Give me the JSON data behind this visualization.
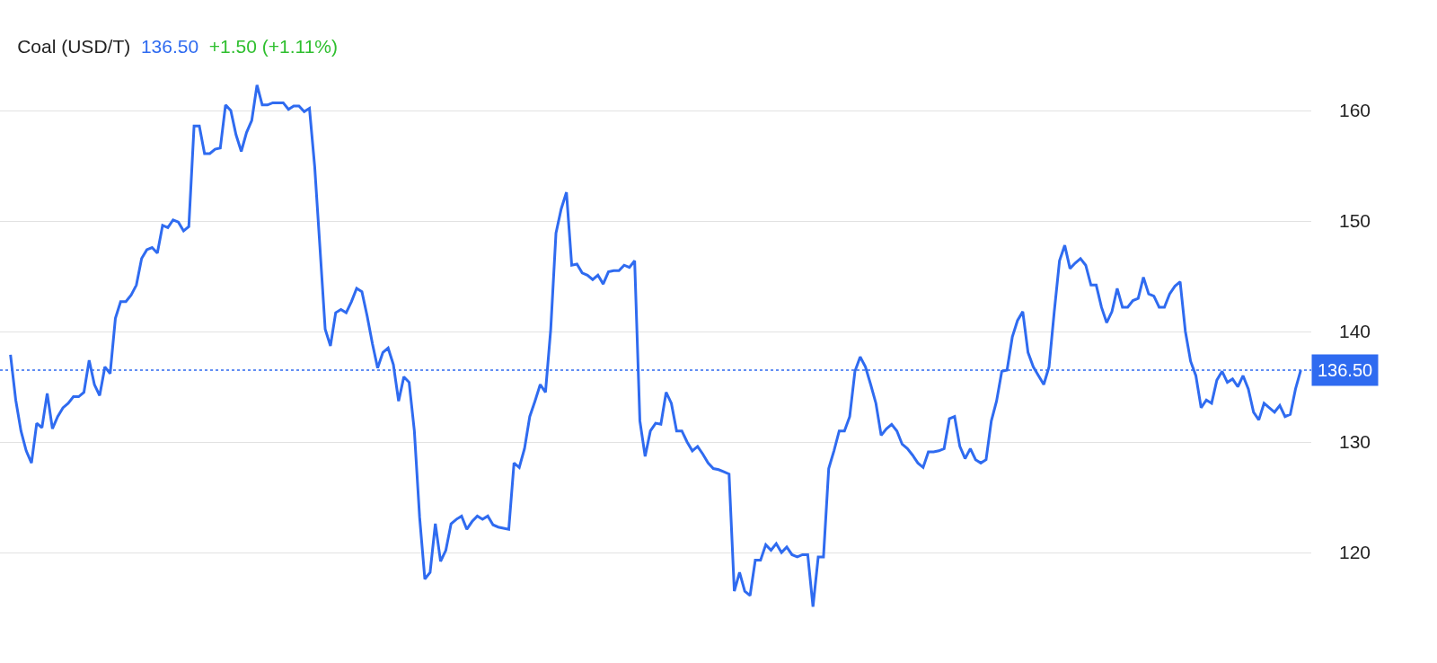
{
  "chart_data": {
    "type": "line",
    "title": "Coal (USD/T)",
    "annotations": [
      "136.50",
      "+1.50 (+1.11%)"
    ],
    "categories": [
      null,
      null,
      null,
      null,
      null,
      null,
      null,
      null,
      null,
      null,
      null,
      null,
      null,
      null,
      null,
      null,
      null,
      null,
      null,
      null,
      null,
      null,
      null,
      null,
      null,
      null,
      null,
      null,
      null,
      null,
      null,
      null,
      null,
      null,
      null,
      null,
      null,
      null,
      null,
      null,
      null,
      null,
      null,
      null,
      null,
      null,
      null,
      null,
      null,
      null,
      null,
      null,
      null,
      null,
      null,
      null,
      null,
      null,
      null,
      null,
      null,
      null,
      null,
      null,
      null,
      null,
      null,
      null,
      null,
      null,
      null,
      null,
      null,
      null,
      null,
      null,
      null,
      null,
      null,
      null,
      null,
      null,
      null,
      null,
      null,
      null,
      null,
      null,
      null,
      null,
      null,
      null,
      null,
      null,
      null,
      null,
      null,
      null,
      null,
      null,
      null,
      null,
      null,
      null,
      null,
      null,
      null,
      null,
      null,
      null,
      null,
      null,
      null,
      null,
      null,
      null,
      null,
      null,
      null,
      null,
      null,
      null,
      null,
      null,
      null,
      null,
      null,
      null,
      null,
      null,
      null,
      null,
      null,
      null,
      null,
      null,
      null,
      null,
      null,
      null,
      null,
      null,
      null,
      null,
      null,
      null,
      null,
      null,
      null,
      null,
      null,
      null,
      null,
      null,
      null,
      null,
      null,
      null,
      null,
      null,
      null,
      null,
      null,
      null,
      null,
      null,
      null,
      null,
      null,
      null,
      null,
      null,
      null,
      null,
      null,
      null,
      null,
      null,
      null,
      null,
      null,
      null,
      null,
      null,
      null,
      null,
      null,
      null,
      null,
      null,
      null,
      null,
      null,
      null,
      null,
      null,
      null,
      null,
      null,
      null,
      null,
      null,
      null,
      null,
      null,
      null,
      null,
      null,
      null,
      null,
      null,
      null,
      null,
      null,
      null,
      null,
      null,
      null,
      null,
      null,
      null,
      null,
      null,
      null,
      null,
      null,
      null,
      null,
      null,
      null,
      null,
      null,
      null,
      null,
      null,
      null,
      null,
      null,
      null,
      null,
      null,
      null,
      null,
      null,
      null,
      null,
      null
    ],
    "series": [
      {
        "color": "#2f6bf0",
        "values": [
          137.9,
          133.8,
          131.0,
          129.2,
          128.1,
          131.7,
          131.3,
          134.4,
          131.2,
          132.3,
          133.1,
          133.5,
          134.1,
          134.1,
          134.5,
          137.4,
          135.2,
          134.2,
          136.8,
          136.2,
          141.2,
          142.7,
          142.7,
          143.3,
          144.2,
          146.6,
          147.4,
          147.6,
          147.1,
          149.6,
          149.4,
          150.1,
          149.9,
          149.1,
          149.5,
          158.6,
          158.6,
          156.1,
          156.1,
          156.5,
          156.6,
          160.5,
          160.0,
          157.8,
          156.3,
          158.0,
          159.1,
          162.3,
          160.5,
          160.5,
          160.7,
          160.7,
          160.7,
          160.1,
          160.4,
          160.4,
          159.9,
          160.2,
          154.9,
          147.6,
          140.2,
          138.7,
          141.7,
          142.0,
          141.7,
          142.7,
          143.9,
          143.6,
          141.4,
          138.9,
          136.7,
          138.1,
          138.5,
          137.0,
          133.7,
          135.9,
          135.4,
          131.0,
          123.2,
          117.6,
          118.2,
          122.6,
          119.2,
          120.2,
          122.6,
          123.0,
          123.3,
          122.1,
          122.8,
          123.3,
          123.0,
          123.3,
          122.5,
          122.3,
          122.2,
          122.1,
          128.1,
          127.7,
          129.4,
          132.3,
          133.7,
          135.2,
          134.5,
          140.2,
          148.9,
          151.1,
          152.6,
          146.0,
          146.1,
          145.3,
          145.1,
          144.7,
          145.1,
          144.3,
          145.4,
          145.5,
          145.5,
          146.0,
          145.8,
          146.4,
          131.9,
          128.7,
          131.0,
          131.7,
          131.6,
          134.5,
          133.5,
          131.0,
          131.0,
          130.0,
          129.2,
          129.6,
          128.9,
          128.1,
          127.6,
          127.5,
          127.3,
          127.1,
          116.5,
          118.2,
          116.5,
          116.1,
          119.3,
          119.3,
          120.7,
          120.2,
          120.8,
          120.0,
          120.5,
          119.8,
          119.6,
          119.8,
          119.8,
          115.1,
          119.6,
          119.6,
          127.6,
          129.2,
          131.0,
          131.0,
          132.3,
          136.4,
          137.7,
          136.8,
          135.2,
          133.5,
          130.6,
          131.2,
          131.6,
          131.0,
          129.8,
          129.4,
          128.8,
          128.1,
          127.7,
          129.1,
          129.1,
          129.2,
          129.4,
          132.1,
          132.3,
          129.6,
          128.5,
          129.4,
          128.4,
          128.1,
          128.4,
          131.9,
          133.7,
          136.4,
          136.5,
          139.5,
          141.0,
          141.8,
          138.1,
          136.8,
          136.0,
          135.2,
          136.8,
          141.8,
          146.4,
          147.8,
          145.7,
          146.2,
          146.6,
          146.0,
          144.2,
          144.2,
          142.2,
          140.8,
          141.8,
          143.9,
          142.2,
          142.2,
          142.8,
          143.0,
          144.9,
          143.4,
          143.2,
          142.2,
          142.2,
          143.4,
          144.1,
          144.5,
          140.0,
          137.3,
          136.0,
          133.1,
          133.8,
          133.5,
          135.6,
          136.4,
          135.4,
          135.7,
          135.0,
          136.0,
          134.8,
          132.7,
          132.0,
          133.5,
          133.1,
          132.7,
          133.3,
          132.3,
          132.5,
          134.8,
          136.5
        ]
      }
    ],
    "ylim": [
      110,
      170
    ],
    "yticks": [
      120,
      130,
      140,
      150,
      160
    ],
    "grid": "y",
    "tick_labels": "y",
    "line_style": "solid",
    "marker": "none",
    "ref_lines": [
      {
        "axis": "y",
        "value": 136.5,
        "label": "136.50",
        "color": "#2f6bf0",
        "line_style": "dotted"
      }
    ]
  }
}
